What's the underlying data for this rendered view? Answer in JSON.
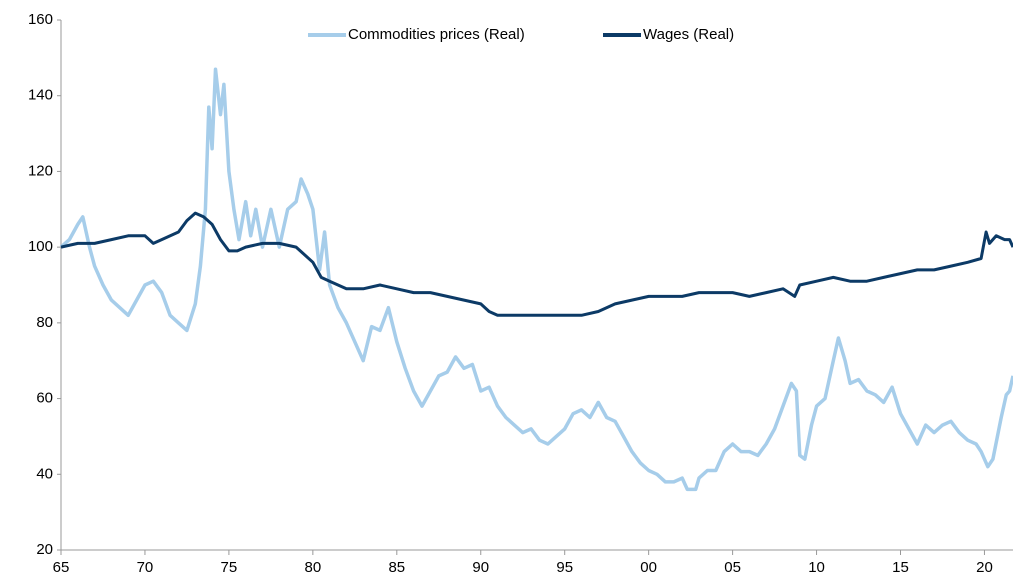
{
  "chart_data": {
    "type": "line",
    "xlim": [
      1965,
      2021.7
    ],
    "xticks": [
      {
        "value": 1965,
        "label": "65"
      },
      {
        "value": 1970,
        "label": "70"
      },
      {
        "value": 1975,
        "label": "75"
      },
      {
        "value": 1980,
        "label": "80"
      },
      {
        "value": 1985,
        "label": "85"
      },
      {
        "value": 1990,
        "label": "90"
      },
      {
        "value": 1995,
        "label": "95"
      },
      {
        "value": 2000,
        "label": "00"
      },
      {
        "value": 2005,
        "label": "05"
      },
      {
        "value": 2010,
        "label": "10"
      },
      {
        "value": 2015,
        "label": "15"
      },
      {
        "value": 2020,
        "label": "20"
      }
    ],
    "ylim": [
      20,
      160
    ],
    "yticks": [
      20,
      40,
      60,
      80,
      100,
      120,
      140,
      160
    ],
    "grid": false,
    "legend": "top",
    "series": [
      {
        "name": "Commodities prices (Real)",
        "color": "#a6cdea",
        "x": [
          1965,
          1965.5,
          1966,
          1966.3,
          1966.7,
          1967,
          1967.5,
          1968,
          1968.5,
          1969,
          1969.5,
          1970,
          1970.5,
          1971,
          1971.5,
          1972,
          1972.5,
          1973,
          1973.3,
          1973.6,
          1973.8,
          1974,
          1974.2,
          1974.5,
          1974.7,
          1975,
          1975.3,
          1975.6,
          1976,
          1976.3,
          1976.6,
          1977,
          1977.5,
          1978,
          1978.5,
          1979,
          1979.3,
          1979.7,
          1980,
          1980.4,
          1980.7,
          1981,
          1981.5,
          1982,
          1982.5,
          1983,
          1983.5,
          1984,
          1984.5,
          1985,
          1985.5,
          1986,
          1986.5,
          1987,
          1987.5,
          1988,
          1988.5,
          1989,
          1989.5,
          1990,
          1990.5,
          1991,
          1991.5,
          1992,
          1992.5,
          1993,
          1993.5,
          1994,
          1994.5,
          1995,
          1995.5,
          1996,
          1996.5,
          1997,
          1997.5,
          1998,
          1998.5,
          1999,
          1999.5,
          2000,
          2000.5,
          2001,
          2001.5,
          2002,
          2002.3,
          2002.8,
          2003,
          2003.5,
          2004,
          2004.5,
          2005,
          2005.5,
          2006,
          2006.5,
          2007,
          2007.5,
          2008,
          2008.5,
          2008.8,
          2009,
          2009.3,
          2009.7,
          2010,
          2010.5,
          2011,
          2011.3,
          2011.7,
          2012,
          2012.5,
          2013,
          2013.5,
          2014,
          2014.5,
          2015,
          2015.5,
          2016,
          2016.5,
          2017,
          2017.5,
          2018,
          2018.5,
          2019,
          2019.5,
          2019.8,
          2020.2,
          2020.5,
          2021,
          2021.3,
          2021.5,
          2021.7
        ],
        "values": [
          100,
          102,
          106,
          108,
          100,
          95,
          90,
          86,
          84,
          82,
          86,
          90,
          91,
          88,
          82,
          80,
          78,
          85,
          95,
          110,
          137,
          126,
          147,
          135,
          143,
          120,
          110,
          102,
          112,
          103,
          110,
          100,
          110,
          100,
          110,
          112,
          118,
          114,
          110,
          94,
          104,
          90,
          84,
          80,
          75,
          70,
          79,
          78,
          84,
          75,
          68,
          62,
          58,
          62,
          66,
          67,
          71,
          68,
          69,
          62,
          63,
          58,
          55,
          53,
          51,
          52,
          49,
          48,
          50,
          52,
          56,
          57,
          55,
          59,
          55,
          54,
          50,
          46,
          43,
          41,
          40,
          38,
          38,
          39,
          36,
          36,
          39,
          41,
          41,
          46,
          48,
          46,
          46,
          45,
          48,
          52,
          58,
          64,
          62,
          45,
          44,
          53,
          58,
          60,
          70,
          76,
          70,
          64,
          65,
          62,
          61,
          59,
          63,
          56,
          52,
          48,
          53,
          51,
          53,
          54,
          51,
          49,
          48,
          46,
          42,
          44,
          55,
          61,
          62,
          66
        ]
      },
      {
        "name": "Wages (Real)",
        "color": "#0c3a66",
        "x": [
          1965,
          1966,
          1967,
          1968,
          1969,
          1970,
          1970.5,
          1971,
          1972,
          1972.5,
          1973,
          1973.5,
          1974,
          1974.5,
          1975,
          1975.5,
          1976,
          1977,
          1978,
          1979,
          1980,
          1980.5,
          1981,
          1982,
          1983,
          1984,
          1985,
          1986,
          1987,
          1988,
          1989,
          1990,
          1990.5,
          1991,
          1992,
          1993,
          1994,
          1995,
          1996,
          1997,
          1998,
          1999,
          2000,
          2001,
          2002,
          2003,
          2004,
          2005,
          2006,
          2007,
          2008,
          2008.7,
          2009,
          2010,
          2011,
          2012,
          2013,
          2014,
          2015,
          2016,
          2017,
          2018,
          2019,
          2019.8,
          2020.1,
          2020.3,
          2020.7,
          2021.2,
          2021.5,
          2021.7
        ],
        "values": [
          100,
          101,
          101,
          102,
          103,
          103,
          101,
          102,
          104,
          107,
          109,
          108,
          106,
          102,
          99,
          99,
          100,
          101,
          101,
          100,
          96,
          92,
          91,
          89,
          89,
          90,
          89,
          88,
          88,
          87,
          86,
          85,
          83,
          82,
          82,
          82,
          82,
          82,
          82,
          83,
          85,
          86,
          87,
          87,
          87,
          88,
          88,
          88,
          87,
          88,
          89,
          87,
          90,
          91,
          92,
          91,
          91,
          92,
          93,
          94,
          94,
          95,
          96,
          97,
          104,
          101,
          103,
          102,
          102,
          100
        ]
      }
    ]
  }
}
